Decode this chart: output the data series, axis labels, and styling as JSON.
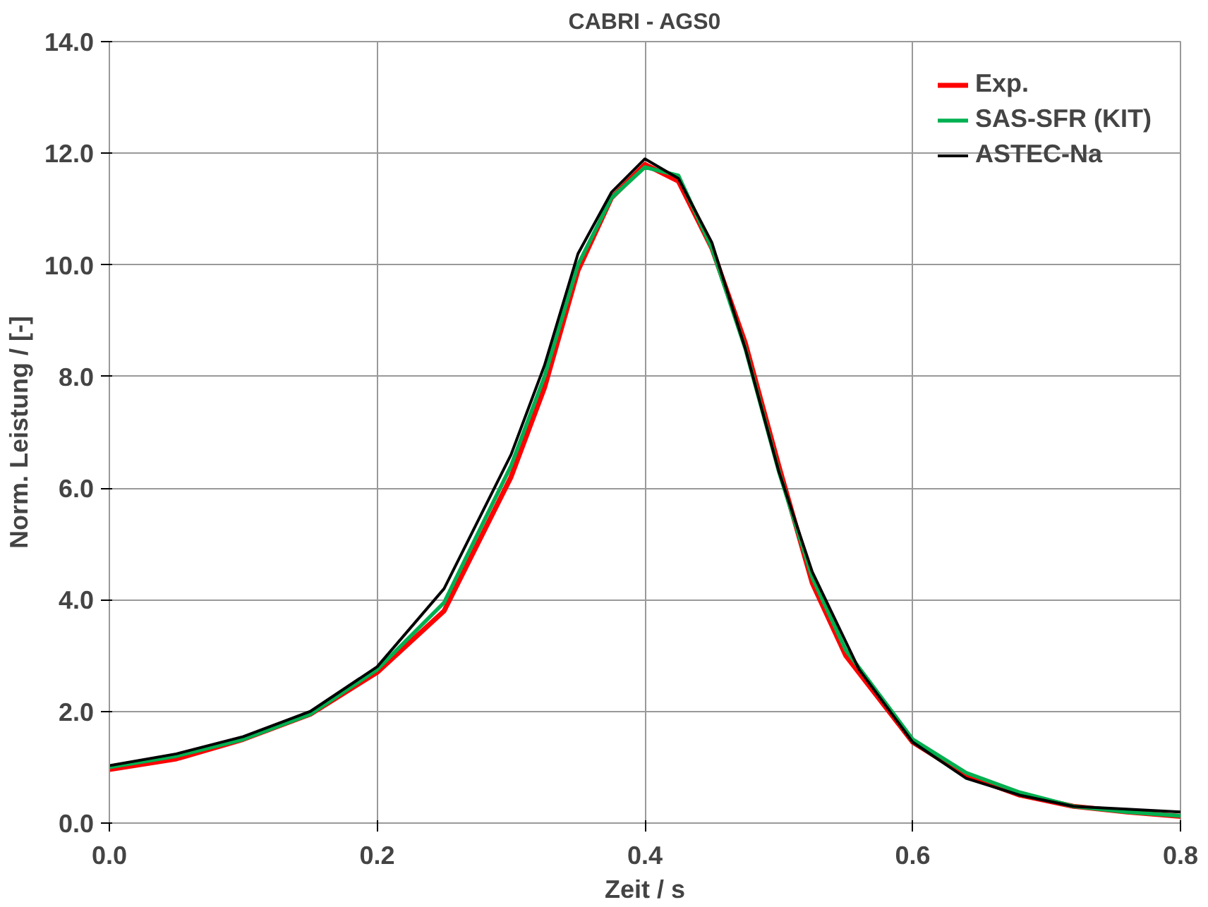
{
  "chart_data": {
    "type": "line",
    "title": "CABRI - AGS0",
    "xlabel": "Zeit / s",
    "ylabel": "Norm. Leistung / [-]",
    "xlim": [
      0,
      0.8
    ],
    "ylim": [
      0,
      14
    ],
    "xticks": [
      {
        "value": 0,
        "label": "0.0"
      },
      {
        "value": 0.2,
        "label": "0.2"
      },
      {
        "value": 0.4,
        "label": "0.4"
      },
      {
        "value": 0.6,
        "label": "0.6"
      },
      {
        "value": 0.8,
        "label": "0.8"
      }
    ],
    "yticks": [
      {
        "value": 0,
        "label": "0.0"
      },
      {
        "value": 2,
        "label": "2.0"
      },
      {
        "value": 4,
        "label": "4.0"
      },
      {
        "value": 6,
        "label": "6.0"
      },
      {
        "value": 8,
        "label": "8.0"
      },
      {
        "value": 10,
        "label": "10.0"
      },
      {
        "value": 12,
        "label": "12.0"
      },
      {
        "value": 14,
        "label": "14.0"
      }
    ],
    "grid": true,
    "legend": "top right",
    "marker": "none",
    "line_style": "solid",
    "series": [
      {
        "name": "Exp.",
        "color": "#ff0000",
        "x": [
          0,
          0.05,
          0.1,
          0.15,
          0.2,
          0.25,
          0.3,
          0.325,
          0.35,
          0.375,
          0.4,
          0.425,
          0.45,
          0.475,
          0.5,
          0.525,
          0.55,
          0.6,
          0.64,
          0.68,
          0.72,
          0.76,
          0.8
        ],
        "values": [
          0.96,
          1.15,
          1.5,
          1.95,
          2.7,
          3.8,
          6.2,
          7.8,
          9.9,
          11.2,
          11.8,
          11.5,
          10.3,
          8.6,
          6.4,
          4.3,
          3.0,
          1.45,
          0.85,
          0.5,
          0.3,
          0.2,
          0.12
        ]
      },
      {
        "name": "SAS-SFR (KIT)",
        "color": "#00b050",
        "x": [
          0,
          0.05,
          0.1,
          0.15,
          0.2,
          0.25,
          0.3,
          0.325,
          0.35,
          0.375,
          0.4,
          0.425,
          0.45,
          0.475,
          0.5,
          0.525,
          0.55,
          0.6,
          0.64,
          0.68,
          0.72,
          0.76,
          0.8
        ],
        "values": [
          1.0,
          1.2,
          1.5,
          1.95,
          2.75,
          3.95,
          6.4,
          8.0,
          10.0,
          11.2,
          11.75,
          11.6,
          10.3,
          8.5,
          6.3,
          4.4,
          3.1,
          1.5,
          0.9,
          0.55,
          0.3,
          0.2,
          0.13
        ]
      },
      {
        "name": "ASTEC-Na",
        "color": "#000000",
        "x": [
          0,
          0.05,
          0.1,
          0.15,
          0.2,
          0.25,
          0.3,
          0.325,
          0.35,
          0.375,
          0.4,
          0.425,
          0.45,
          0.475,
          0.5,
          0.525,
          0.56,
          0.6,
          0.64,
          0.68,
          0.72,
          0.76,
          0.8
        ],
        "values": [
          1.03,
          1.24,
          1.55,
          2.0,
          2.8,
          4.2,
          6.6,
          8.2,
          10.2,
          11.3,
          11.9,
          11.55,
          10.4,
          8.5,
          6.3,
          4.5,
          2.75,
          1.45,
          0.8,
          0.5,
          0.3,
          0.25,
          0.2
        ]
      }
    ]
  }
}
